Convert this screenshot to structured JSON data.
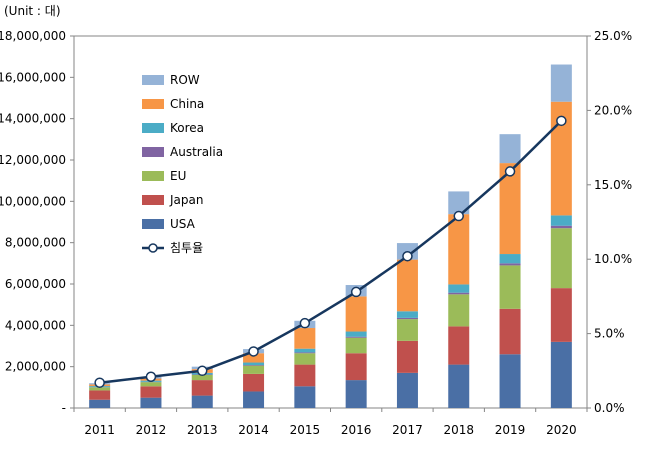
{
  "chart_data": {
    "type": "bar",
    "stacked": true,
    "unit_note": "(Unit : 대)",
    "categories": [
      "2011",
      "2012",
      "2013",
      "2014",
      "2015",
      "2016",
      "2017",
      "2018",
      "2019",
      "2020"
    ],
    "y_left": {
      "ylim": [
        0,
        18000000
      ],
      "ticks": [
        0,
        2000000,
        4000000,
        6000000,
        8000000,
        10000000,
        12000000,
        14000000,
        16000000,
        18000000
      ],
      "tick_labels": [
        "-",
        "2,000,000",
        "4,000,000",
        "6,000,000",
        "8,000,000",
        "10,000,000",
        "12,000,000",
        "14,000,000",
        "16,000,000",
        "18,000,000"
      ]
    },
    "y_right": {
      "ylim": [
        0,
        25
      ],
      "ticks": [
        0,
        5,
        10,
        15,
        20,
        25
      ],
      "tick_labels": [
        "0.0%",
        "5.0%",
        "10.0%",
        "15.0%",
        "20.0%",
        "25.0%"
      ]
    },
    "series": [
      {
        "name": "USA",
        "color": "#4a6fa5",
        "values": [
          400000,
          500000,
          600000,
          800000,
          1050000,
          1350000,
          1700000,
          2100000,
          2600000,
          3200000
        ]
      },
      {
        "name": "Japan",
        "color": "#c0504d",
        "values": [
          450000,
          550000,
          750000,
          850000,
          1050000,
          1300000,
          1550000,
          1850000,
          2200000,
          2600000
        ]
      },
      {
        "name": "EU",
        "color": "#9bbb59",
        "values": [
          150000,
          200000,
          250000,
          400000,
          550000,
          750000,
          1050000,
          1550000,
          2100000,
          2900000
        ]
      },
      {
        "name": "Australia",
        "color": "#8064a2",
        "values": [
          10000,
          15000,
          20000,
          30000,
          40000,
          50000,
          60000,
          80000,
          100000,
          120000
        ]
      },
      {
        "name": "Korea",
        "color": "#4bacc6",
        "values": [
          50000,
          60000,
          80000,
          120000,
          180000,
          250000,
          320000,
          400000,
          450000,
          500000
        ]
      },
      {
        "name": "China",
        "color": "#f79646",
        "values": [
          80000,
          100000,
          180000,
          450000,
          1000000,
          1700000,
          2500000,
          3400000,
          4400000,
          5500000
        ]
      },
      {
        "name": "ROW",
        "color": "#95b3d7",
        "values": [
          60000,
          80000,
          120000,
          200000,
          350000,
          550000,
          800000,
          1100000,
          1400000,
          1800000
        ]
      }
    ],
    "legend_order": [
      "ROW",
      "China",
      "Korea",
      "Australia",
      "EU",
      "Japan",
      "USA"
    ],
    "line_series": {
      "name": "침투율",
      "axis": "right",
      "color": "#17375e",
      "values": [
        1.7,
        2.1,
        2.5,
        3.8,
        5.7,
        7.8,
        10.2,
        12.9,
        15.9,
        19.3
      ]
    },
    "legend_position": "top-left inside plot",
    "grid": false
  }
}
